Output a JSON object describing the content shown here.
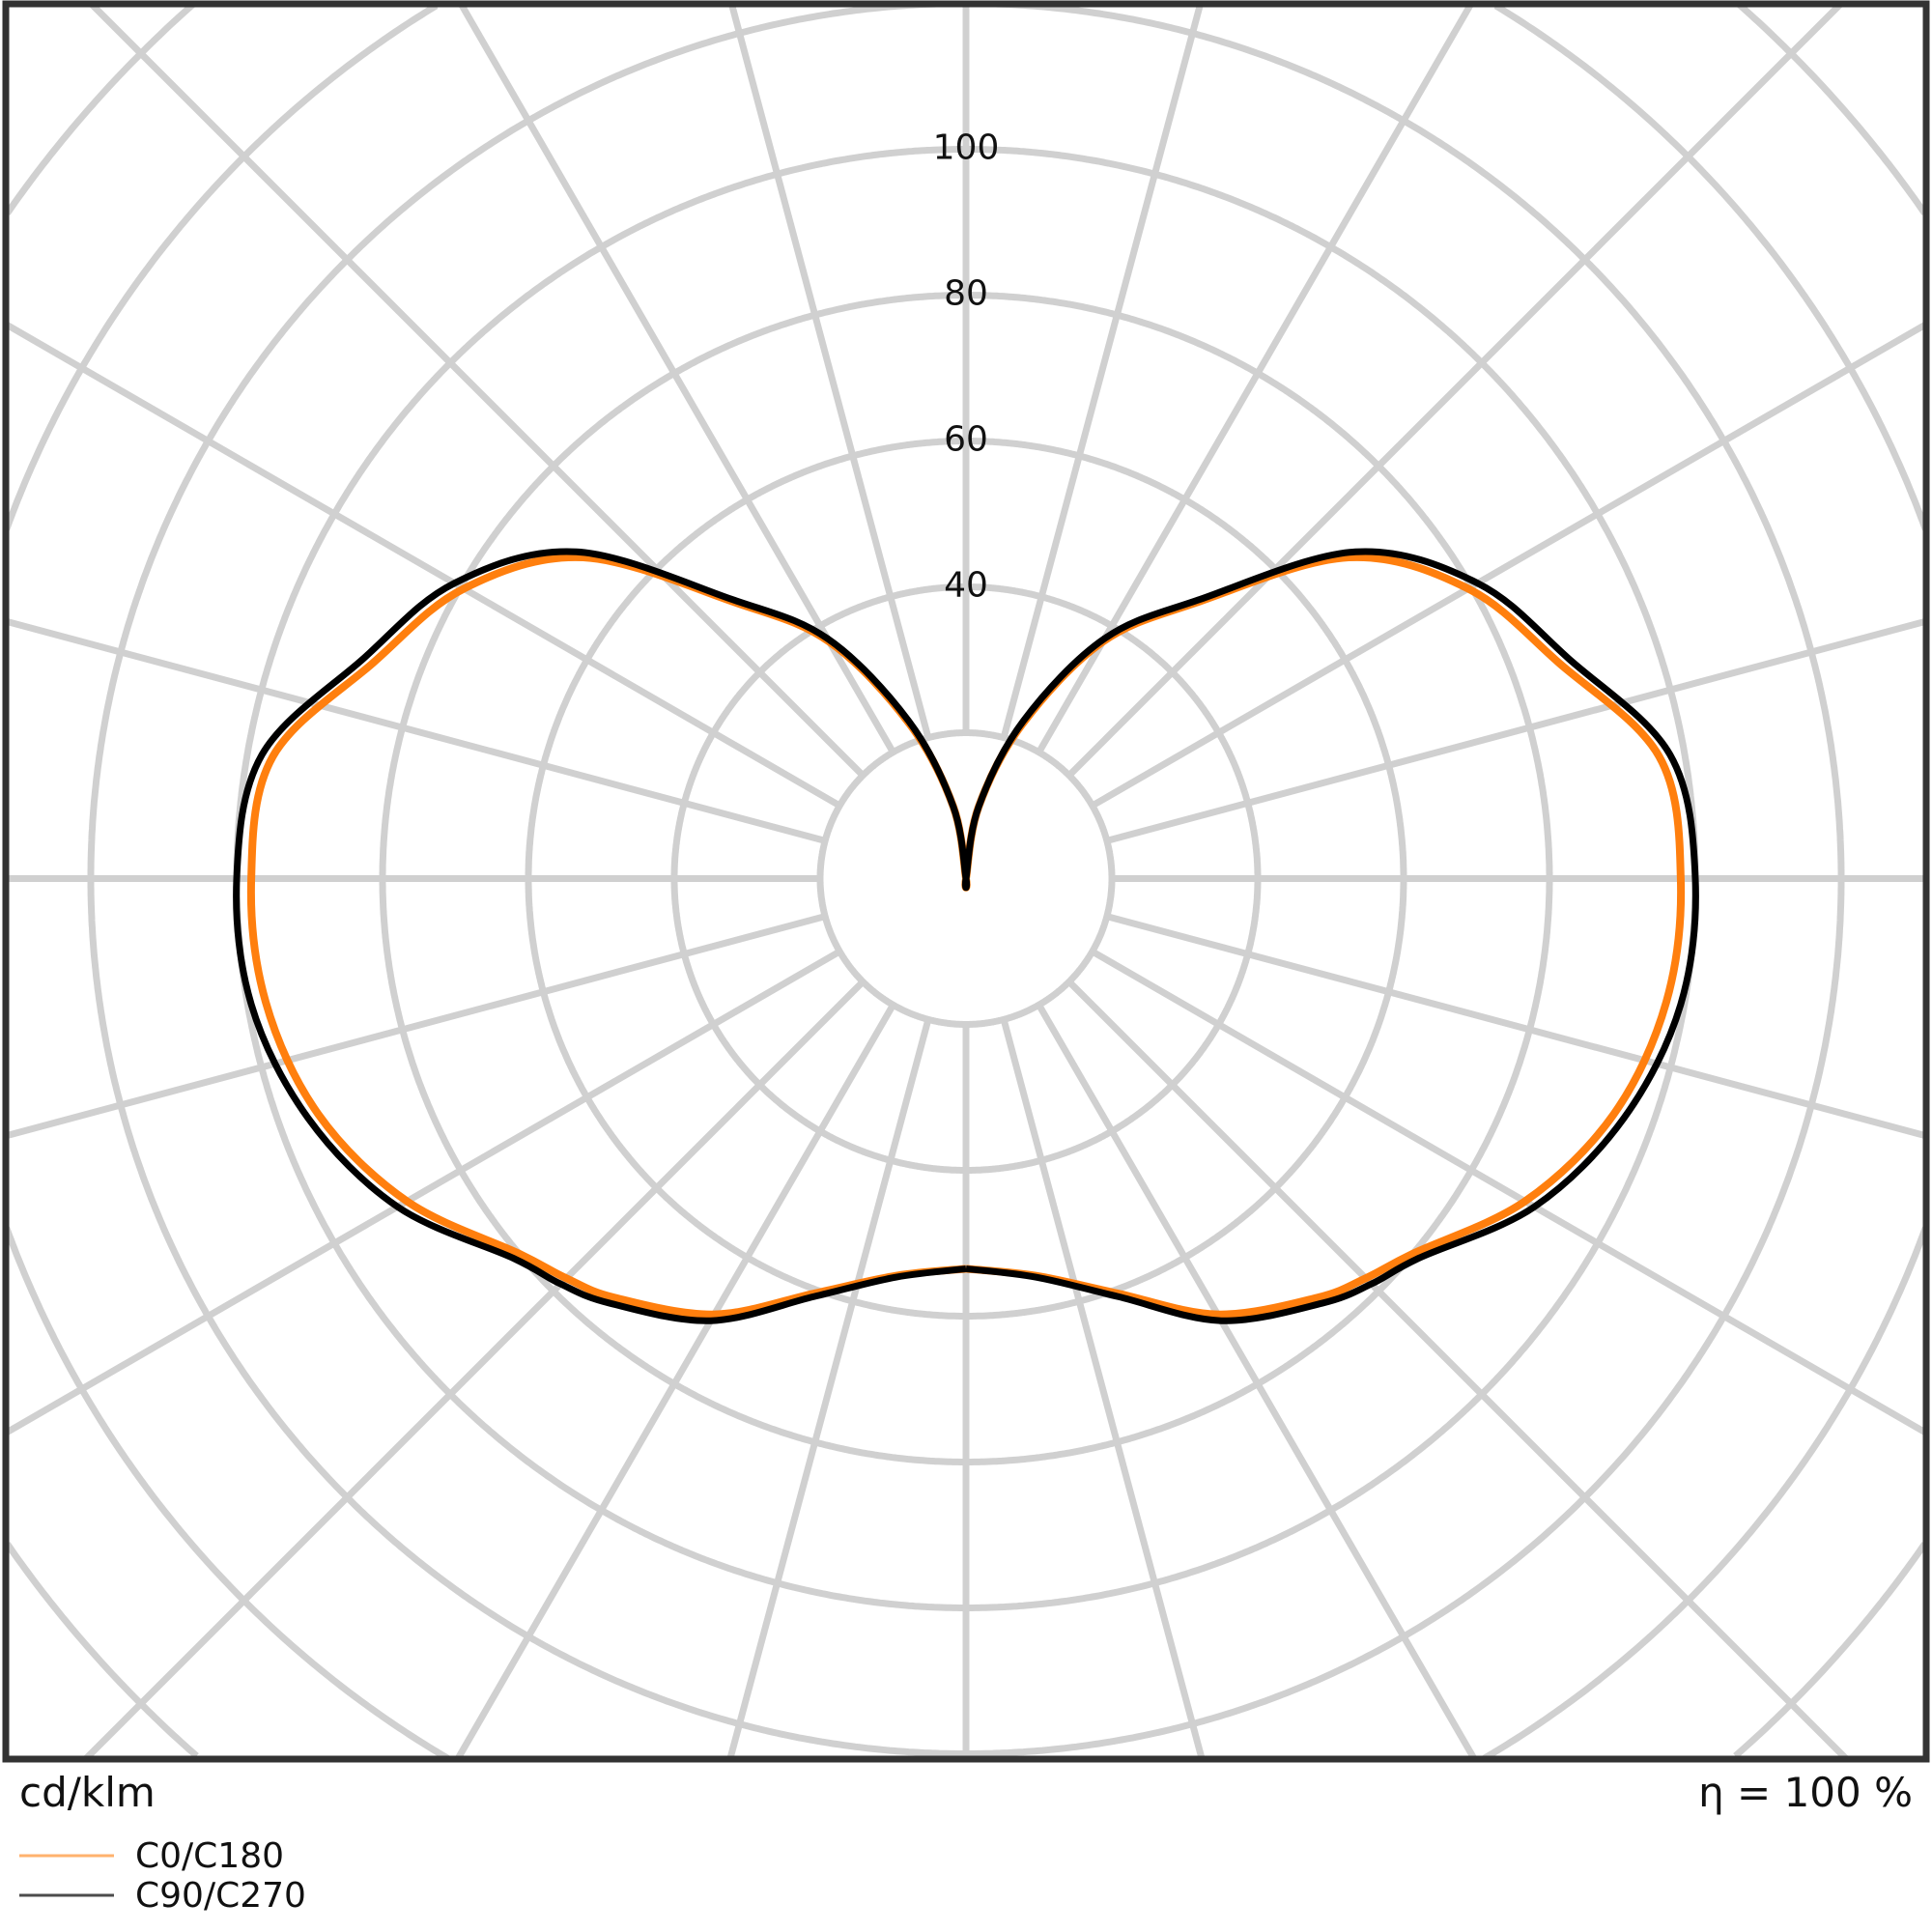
{
  "chart_data": {
    "type": "polar",
    "unit_label": "cd/klm",
    "efficiency_label": "η = 100 %",
    "radial_ticks": [
      40,
      60,
      80,
      100
    ],
    "radial_grid_step": 20,
    "angular_grid_step_deg": 15,
    "grid": true,
    "zero_direction": "down",
    "legend_position": "bottom-left",
    "angles_deg": [
      0,
      10,
      20,
      30,
      40,
      45,
      50,
      60,
      70,
      80,
      90,
      100,
      110,
      120,
      130,
      140,
      150,
      160,
      170,
      180
    ],
    "series": [
      {
        "name": "C0/C180",
        "color": "#ff7f0e",
        "values": [
          53.5,
          55.3,
          60.5,
          69,
          75,
          77.5,
          80,
          88.5,
          94.5,
          97.5,
          98,
          96.5,
          86.5,
          79.5,
          68.5,
          49.5,
          37.5,
          22.5,
          10,
          0
        ]
      },
      {
        "name": "C90/C270",
        "color": "#000000",
        "values": [
          53.5,
          55.5,
          61,
          70,
          76,
          78.6,
          81,
          90,
          96,
          99.5,
          100,
          98,
          88,
          81,
          69.7,
          50,
          38,
          23,
          10,
          0
        ]
      }
    ],
    "colors": {
      "grid": "#d0d0d0",
      "frame": "#333333"
    }
  }
}
